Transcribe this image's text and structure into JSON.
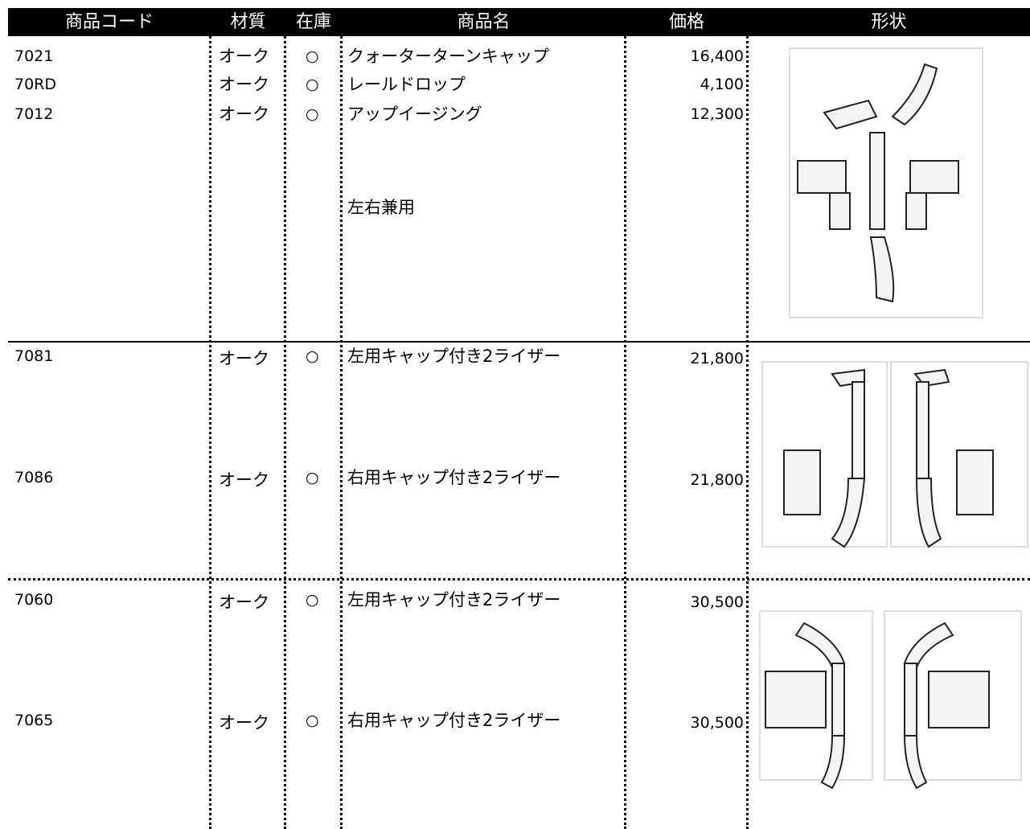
{
  "header": {
    "columns": [
      "商品コード",
      "材質",
      "在庫",
      "商品名",
      "価格",
      "形状"
    ]
  },
  "groups": [
    {
      "rows": [
        {
          "code": "7021",
          "material": "オーク",
          "stock": "○",
          "name": "クォーターターンキャップ",
          "price": "16,400"
        },
        {
          "code": "70RD",
          "material": "オーク",
          "stock": "○",
          "name": "レールドロップ",
          "price": "4,100"
        },
        {
          "code": "7012",
          "material": "オーク",
          "stock": "○",
          "name": "アップイージング",
          "price": "12,300"
        }
      ],
      "note": "左右兼用"
    },
    {
      "rows": [
        {
          "code": "7081",
          "material": "オーク",
          "stock": "○",
          "name": "左用キャップ付き2ライザー",
          "price": "21,800"
        },
        {
          "code": "7086",
          "material": "オーク",
          "stock": "○",
          "name": "右用キャップ付き2ライザー",
          "price": "21,800"
        }
      ]
    },
    {
      "rows": [
        {
          "code": "7060",
          "material": "オーク",
          "stock": "○",
          "name": "左用キャップ付き2ライザー",
          "price": "30,500"
        },
        {
          "code": "7065",
          "material": "オーク",
          "stock": "○",
          "name": "右用キャップ付き2ライザー",
          "price": "30,500"
        }
      ]
    }
  ]
}
